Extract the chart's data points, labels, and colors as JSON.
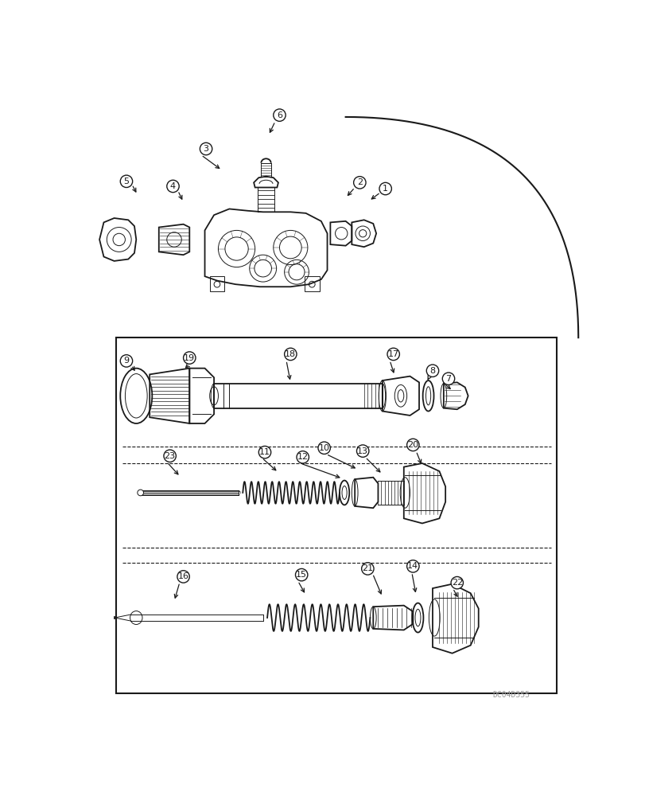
{
  "bg_color": "#ffffff",
  "line_color": "#1a1a1a",
  "watermark": "DC04D355",
  "fig_width": 8.12,
  "fig_height": 10.0,
  "dpi": 100
}
